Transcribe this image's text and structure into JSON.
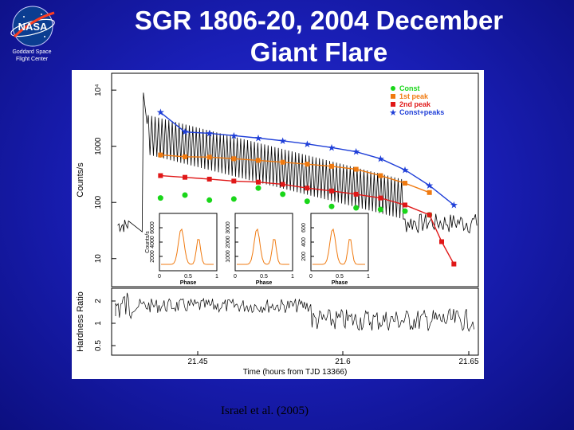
{
  "header": {
    "logo_text": "NASA",
    "org_line1": "Goddard Space",
    "org_line2": "Flight Center",
    "title_line1": "SGR 1806-20, 2004 December",
    "title_line2": "Giant Flare"
  },
  "credit": "Israel et al. (2005)",
  "colors": {
    "background": "#1a1fb8",
    "const": "#19d619",
    "first_peak": "#f07a10",
    "second_peak": "#e01818",
    "const_peaks": "#1f3fd8"
  },
  "chart_data": [
    {
      "type": "line",
      "panel": "light curve",
      "ylabel": "Counts/s",
      "yscale": "log",
      "ylim": [
        1,
        10000
      ],
      "yticks": [
        "10",
        "100",
        "1000",
        "10⁴"
      ],
      "legend": [
        "Const",
        "1st peak",
        "2nd peak",
        "Const+peaks"
      ],
      "legend_position": "top-right",
      "series": [
        {
          "name": "Const",
          "x": [
            21.4,
            21.42,
            21.44,
            21.46,
            21.48,
            21.5,
            21.52,
            21.54,
            21.56,
            21.58,
            21.6,
            21.62
          ],
          "values": [
            120,
            135,
            110,
            115,
            180,
            140,
            105,
            85,
            80,
            75,
            70,
            60
          ]
        },
        {
          "name": "1st peak",
          "x": [
            21.4,
            21.42,
            21.44,
            21.46,
            21.48,
            21.5,
            21.52,
            21.54,
            21.56,
            21.58,
            21.6,
            21.62
          ],
          "values": [
            700,
            650,
            640,
            600,
            560,
            520,
            480,
            440,
            390,
            300,
            220,
            150
          ]
        },
        {
          "name": "2nd peak",
          "x": [
            21.4,
            21.42,
            21.44,
            21.46,
            21.48,
            21.5,
            21.52,
            21.54,
            21.56,
            21.58,
            21.6,
            21.62,
            21.63,
            21.64
          ],
          "values": [
            300,
            280,
            260,
            240,
            230,
            210,
            180,
            160,
            140,
            120,
            90,
            60,
            20,
            8
          ]
        },
        {
          "name": "Const+peaks",
          "x": [
            21.4,
            21.42,
            21.44,
            21.46,
            21.48,
            21.5,
            21.52,
            21.54,
            21.56,
            21.58,
            21.6,
            21.62,
            21.64
          ],
          "values": [
            4000,
            1800,
            1700,
            1550,
            1400,
            1250,
            1100,
            950,
            800,
            600,
            380,
            200,
            90
          ]
        }
      ]
    },
    {
      "type": "line",
      "panel": "hardness ratio",
      "ylabel": "Hardness Ratio",
      "yticks": [
        "0.5",
        "1",
        "2"
      ],
      "xlabel": "Time (hours from TJD 13366)",
      "xticks": [
        "21.45",
        "21.6",
        "21.65"
      ]
    },
    {
      "type": "line",
      "panel": "inset pulse profiles",
      "ylabel": "Counts/s",
      "xlabel": "Phase",
      "xticks": [
        "0",
        "0.5",
        "1"
      ],
      "insets": [
        {
          "yticks": [
            "2000",
            "4000",
            "6000"
          ]
        },
        {
          "yticks": [
            "1000",
            "2000",
            "3000"
          ]
        },
        {
          "yticks": [
            "200",
            "400",
            "600"
          ]
        }
      ]
    }
  ]
}
